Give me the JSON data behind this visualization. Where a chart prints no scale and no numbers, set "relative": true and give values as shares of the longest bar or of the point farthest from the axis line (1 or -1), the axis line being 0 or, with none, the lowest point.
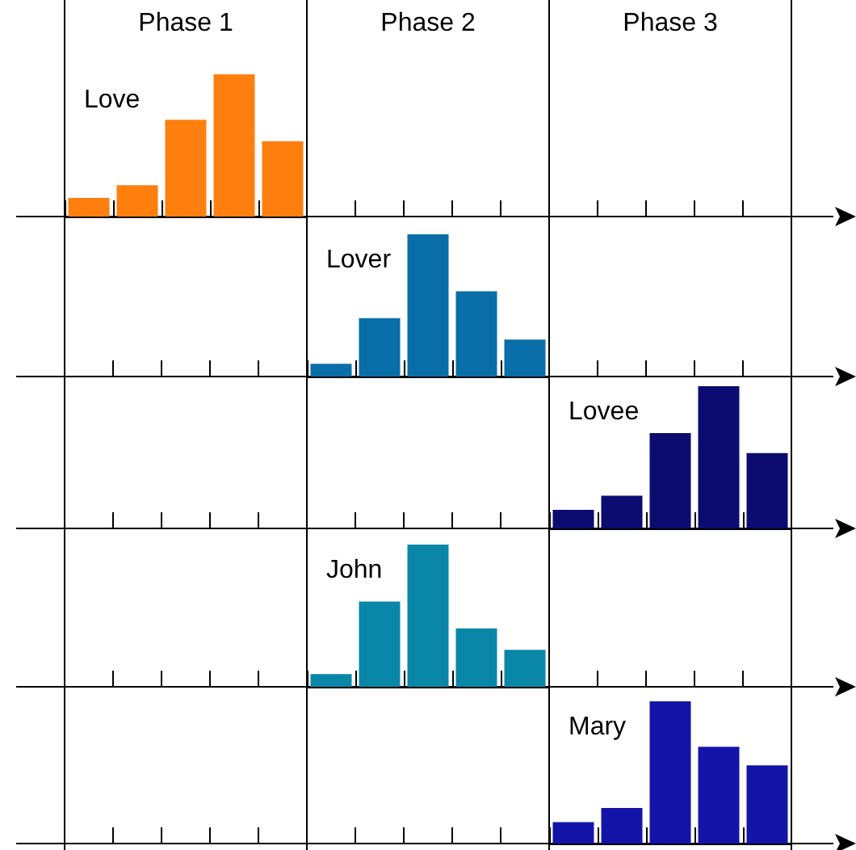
{
  "chart_data": [
    {
      "type": "bar",
      "relative": true,
      "tick_labels": false,
      "annotations": [
        "Phase 1",
        "Phase 2",
        "Phase 3"
      ],
      "categories": [
        null,
        null,
        null,
        null,
        null
      ],
      "series": [
        {
          "name": "Love",
          "color": "#ff7f0e",
          "values": [
            0.13,
            0.22,
            0.68,
            1,
            0.53
          ]
        }
      ]
    },
    {
      "type": "bar",
      "relative": true,
      "tick_labels": false,
      "categories": [
        null,
        null,
        null,
        null,
        null
      ],
      "series": [
        {
          "name": "Lover",
          "color": "#0a6ea8",
          "values": [
            0.09,
            0.41,
            1,
            0.6,
            0.26
          ]
        }
      ]
    },
    {
      "type": "bar",
      "relative": true,
      "tick_labels": false,
      "categories": [
        null,
        null,
        null,
        null,
        null
      ],
      "series": [
        {
          "name": "Lovee",
          "color": "#0b0b70",
          "values": [
            0.13,
            0.23,
            0.67,
            1,
            0.53
          ]
        }
      ]
    },
    {
      "type": "bar",
      "relative": true,
      "tick_labels": false,
      "categories": [
        null,
        null,
        null,
        null,
        null
      ],
      "series": [
        {
          "name": "John",
          "color": "#0a87a8",
          "values": [
            0.09,
            0.6,
            1,
            0.41,
            0.26
          ]
        }
      ]
    },
    {
      "type": "bar",
      "relative": true,
      "tick_labels": false,
      "categories": [
        null,
        null,
        null,
        null,
        null
      ],
      "series": [
        {
          "name": "Mary",
          "color": "#1414a8",
          "values": [
            0.15,
            0.25,
            1,
            0.68,
            0.55
          ]
        }
      ]
    }
  ]
}
